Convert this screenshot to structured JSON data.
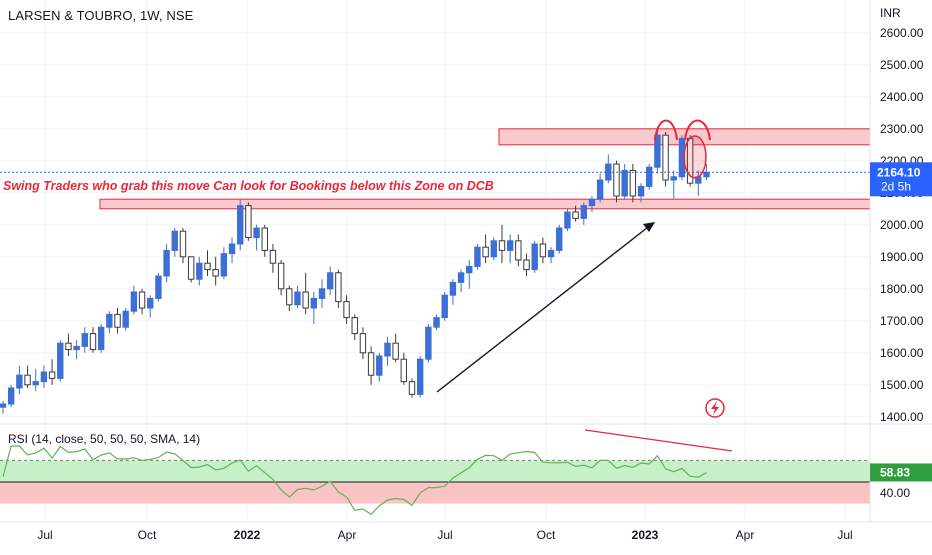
{
  "header": {
    "symbol_title": "LARSEN & TOUBRO, 1W, NSE",
    "currency": "INR"
  },
  "annotation": {
    "text": "Swing Traders who grab this move Can look for Bookings below this Zone on DCB"
  },
  "price_axis": {
    "ticks": [
      "2600.00",
      "2500.00",
      "2400.00",
      "2300.00",
      "2200.00",
      "2100.00",
      "2000.00",
      "1900.00",
      "1800.00",
      "1700.00",
      "1600.00",
      "1500.00",
      "1400.00"
    ],
    "ylim": [
      1390,
      2640
    ]
  },
  "last_price": {
    "value": "2164.10",
    "countdown": "2d 5h",
    "color": "#2962ff"
  },
  "time_axis": {
    "labels": [
      "Jul",
      "Oct",
      "2022",
      "Apr",
      "Jul",
      "Oct",
      "2023",
      "Apr",
      "Jul"
    ]
  },
  "rsi": {
    "label": "RSI (14, close, 50, 50, 50, SMA, 14)",
    "value_label": "58.83",
    "level_label": "40.00",
    "value_color": "#2e9e3e"
  },
  "colors": {
    "up": "#3d6fd6",
    "down": "#3a3a3a",
    "zone_fill": "#f9c9cd",
    "zone_border": "#e8283a",
    "rsi_line": "#5fb35a",
    "rsi_upper": "#c8f0c8",
    "rsi_lower": "#fbc4c4"
  },
  "chart_data": {
    "type": "candlestick",
    "title": "LARSEN & TOUBRO, 1W, NSE",
    "ylabel": "INR",
    "series": [
      {
        "name": "LARSEN & TOUBRO",
        "values": [
          [
            1430,
            1450,
            1410,
            1440
          ],
          [
            1440,
            1500,
            1430,
            1490
          ],
          [
            1490,
            1560,
            1470,
            1530
          ],
          [
            1530,
            1560,
            1490,
            1500
          ],
          [
            1500,
            1550,
            1480,
            1510
          ],
          [
            1510,
            1560,
            1490,
            1540
          ],
          [
            1540,
            1580,
            1500,
            1520
          ],
          [
            1520,
            1640,
            1510,
            1630
          ],
          [
            1630,
            1660,
            1590,
            1610
          ],
          [
            1610,
            1640,
            1580,
            1620
          ],
          [
            1620,
            1680,
            1600,
            1660
          ],
          [
            1660,
            1680,
            1600,
            1610
          ],
          [
            1610,
            1690,
            1600,
            1680
          ],
          [
            1680,
            1730,
            1660,
            1720
          ],
          [
            1720,
            1740,
            1660,
            1680
          ],
          [
            1680,
            1740,
            1670,
            1730
          ],
          [
            1730,
            1810,
            1720,
            1790
          ],
          [
            1790,
            1800,
            1720,
            1740
          ],
          [
            1740,
            1780,
            1710,
            1770
          ],
          [
            1770,
            1850,
            1760,
            1840
          ],
          [
            1840,
            1940,
            1820,
            1920
          ],
          [
            1920,
            1990,
            1900,
            1980
          ],
          [
            1980,
            1990,
            1880,
            1900
          ],
          [
            1900,
            1900,
            1820,
            1830
          ],
          [
            1830,
            1900,
            1810,
            1880
          ],
          [
            1880,
            1920,
            1840,
            1860
          ],
          [
            1860,
            1900,
            1810,
            1840
          ],
          [
            1840,
            1930,
            1830,
            1910
          ],
          [
            1910,
            1960,
            1880,
            1940
          ],
          [
            1940,
            2080,
            1920,
            2060
          ],
          [
            2060,
            2070,
            1950,
            1960
          ],
          [
            1960,
            2000,
            1920,
            1990
          ],
          [
            1990,
            2000,
            1900,
            1920
          ],
          [
            1920,
            1940,
            1850,
            1880
          ],
          [
            1880,
            1890,
            1780,
            1800
          ],
          [
            1800,
            1810,
            1730,
            1750
          ],
          [
            1750,
            1810,
            1740,
            1790
          ],
          [
            1790,
            1850,
            1720,
            1740
          ],
          [
            1740,
            1790,
            1690,
            1770
          ],
          [
            1770,
            1830,
            1740,
            1800
          ],
          [
            1800,
            1870,
            1780,
            1850
          ],
          [
            1850,
            1860,
            1740,
            1760
          ],
          [
            1760,
            1780,
            1690,
            1710
          ],
          [
            1710,
            1720,
            1640,
            1660
          ],
          [
            1660,
            1680,
            1580,
            1600
          ],
          [
            1600,
            1620,
            1500,
            1530
          ],
          [
            1530,
            1600,
            1510,
            1590
          ],
          [
            1590,
            1650,
            1560,
            1630
          ],
          [
            1630,
            1660,
            1570,
            1580
          ],
          [
            1580,
            1600,
            1500,
            1510
          ],
          [
            1510,
            1520,
            1460,
            1470
          ],
          [
            1470,
            1590,
            1460,
            1580
          ],
          [
            1580,
            1690,
            1570,
            1680
          ],
          [
            1680,
            1720,
            1670,
            1710
          ],
          [
            1710,
            1790,
            1700,
            1780
          ],
          [
            1780,
            1830,
            1750,
            1820
          ],
          [
            1820,
            1860,
            1790,
            1850
          ],
          [
            1850,
            1890,
            1800,
            1870
          ],
          [
            1870,
            1940,
            1860,
            1930
          ],
          [
            1930,
            1970,
            1880,
            1900
          ],
          [
            1900,
            1960,
            1890,
            1950
          ],
          [
            1950,
            2000,
            1880,
            1920
          ],
          [
            1920,
            1970,
            1880,
            1950
          ],
          [
            1950,
            1970,
            1870,
            1890
          ],
          [
            1890,
            1910,
            1840,
            1860
          ],
          [
            1860,
            1950,
            1850,
            1940
          ],
          [
            1940,
            1960,
            1880,
            1900
          ],
          [
            1900,
            1930,
            1880,
            1920
          ],
          [
            1920,
            2000,
            1910,
            1990
          ],
          [
            1990,
            2050,
            1980,
            2040
          ],
          [
            2040,
            2060,
            2010,
            2020
          ],
          [
            2020,
            2070,
            2000,
            2060
          ],
          [
            2060,
            2090,
            2040,
            2080
          ],
          [
            2080,
            2160,
            2070,
            2140
          ],
          [
            2140,
            2220,
            2130,
            2190
          ],
          [
            2190,
            2200,
            2070,
            2090
          ],
          [
            2090,
            2190,
            2080,
            2170
          ],
          [
            2170,
            2190,
            2070,
            2090
          ],
          [
            2090,
            2130,
            2070,
            2120
          ],
          [
            2120,
            2190,
            2110,
            2180
          ],
          [
            2180,
            2300,
            2160,
            2280
          ],
          [
            2280,
            2290,
            2120,
            2140
          ],
          [
            2140,
            2170,
            2080,
            2150
          ],
          [
            2150,
            2280,
            2140,
            2270
          ],
          [
            2270,
            2280,
            2120,
            2130
          ],
          [
            2130,
            2170,
            2090,
            2150
          ],
          [
            2150,
            2190,
            2140,
            2164.1
          ]
        ]
      }
    ],
    "x_labels": [
      "Jul",
      "Oct",
      "2022",
      "Apr",
      "Jul",
      "Oct",
      "2023",
      "Apr",
      "Jul"
    ],
    "ylim": [
      1390,
      2640
    ],
    "zones": [
      [
        2250,
        2300
      ],
      [
        2050,
        2080
      ]
    ],
    "rsi_last": 58.83,
    "rsi_levels": [
      70,
      50,
      30
    ]
  }
}
